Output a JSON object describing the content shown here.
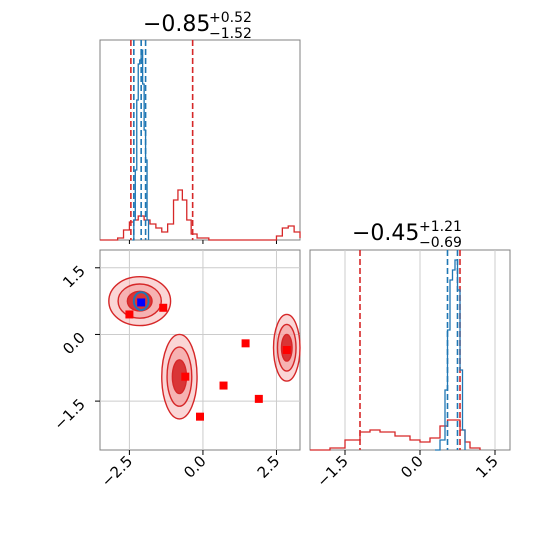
{
  "colors": {
    "red": "#d62728",
    "blue": "#1f77b4",
    "red_fill": "#f3a3a3",
    "marker_blue": "#0000ff",
    "marker_red": "#ff0000"
  },
  "titles": {
    "param1": {
      "median": "−0.85",
      "upper": "+0.52",
      "lower": "−1.52"
    },
    "param2": {
      "median": "−0.45",
      "upper": "+1.21",
      "lower": "−0.69"
    }
  },
  "chart_data": [
    {
      "type": "histogram",
      "panel": "top-left",
      "xlim": [
        -3.5,
        3.3
      ],
      "ylim": [
        0,
        1
      ],
      "series": [
        {
          "color": "#1f77b4",
          "vlines": [
            -2.35,
            -2.1,
            -1.95
          ],
          "points": [
            [
              -2.4,
              0
            ],
            [
              -2.35,
              0.1
            ],
            [
              -2.3,
              0.35
            ],
            [
              -2.25,
              0.7
            ],
            [
              -2.2,
              0.88
            ],
            [
              -2.15,
              0.9
            ],
            [
              -2.1,
              0.95
            ],
            [
              -2.05,
              0.78
            ],
            [
              -2.0,
              0.55
            ],
            [
              -1.95,
              0.4
            ],
            [
              -1.9,
              0.1
            ],
            [
              -1.85,
              0
            ]
          ]
        },
        {
          "color": "#d62728",
          "vlines": [
            -2.45,
            -0.35
          ],
          "points": [
            [
              -3.5,
              0
            ],
            [
              -2.9,
              0.01
            ],
            [
              -2.7,
              0.05
            ],
            [
              -2.5,
              0.09
            ],
            [
              -2.35,
              0.1
            ],
            [
              -2.2,
              0.12
            ],
            [
              -2.0,
              0.1
            ],
            [
              -1.8,
              0.08
            ],
            [
              -1.6,
              0.06
            ],
            [
              -1.4,
              0.04
            ],
            [
              -1.2,
              0.08
            ],
            [
              -1.0,
              0.2
            ],
            [
              -0.85,
              0.25
            ],
            [
              -0.7,
              0.2
            ],
            [
              -0.55,
              0.1
            ],
            [
              -0.4,
              0.03
            ],
            [
              -0.2,
              0.01
            ],
            [
              0.2,
              0
            ],
            [
              1.6,
              0
            ],
            [
              2.5,
              0.02
            ],
            [
              2.7,
              0.06
            ],
            [
              2.9,
              0.07
            ],
            [
              3.1,
              0.04
            ],
            [
              3.3,
              0.01
            ]
          ]
        }
      ],
      "ticks": []
    },
    {
      "type": "scatter",
      "panel": "bottom-left",
      "xlim": [
        -3.5,
        3.3
      ],
      "ylim": [
        -2.6,
        1.9
      ],
      "xticks": [
        -2.5,
        0.0,
        2.5
      ],
      "xticklabels": [
        "−2.5",
        "0.0",
        "2.5"
      ],
      "yticks": [
        1.5,
        0.0,
        -1.5
      ],
      "yticklabels": [
        "1.5",
        "0.0",
        "−1.5"
      ],
      "contours_red": [
        {
          "cx": -2.15,
          "cy": 0.75,
          "rx": 1.05,
          "ry": 0.55
        },
        {
          "cx": -0.8,
          "cy": -0.95,
          "rx": 0.6,
          "ry": 0.95
        },
        {
          "cx": 2.85,
          "cy": -0.3,
          "rx": 0.45,
          "ry": 0.75
        }
      ],
      "contour_blue": {
        "cx": -2.1,
        "cy": 0.75,
        "rx": 0.25,
        "ry": 0.2
      },
      "markers_red": [
        [
          -2.5,
          0.45
        ],
        [
          -1.35,
          0.6
        ],
        [
          -0.6,
          -0.95
        ],
        [
          -0.1,
          -1.85
        ],
        [
          0.7,
          -1.15
        ],
        [
          1.45,
          -0.2
        ],
        [
          1.9,
          -1.45
        ],
        [
          2.85,
          -0.35
        ]
      ],
      "markers_blue": [
        [
          -2.1,
          0.72
        ]
      ]
    },
    {
      "type": "histogram",
      "panel": "bottom-right",
      "xlim": [
        -2.2,
        1.8
      ],
      "ylim": [
        0,
        1
      ],
      "xticks": [
        -1.5,
        0.0,
        1.5
      ],
      "xticklabels": [
        "−1.5",
        "0.0",
        "1.5"
      ],
      "series": [
        {
          "color": "#1f77b4",
          "vlines": [
            0.55,
            0.75
          ],
          "points": [
            [
              0.3,
              0
            ],
            [
              0.4,
              0.05
            ],
            [
              0.5,
              0.3
            ],
            [
              0.55,
              0.6
            ],
            [
              0.6,
              0.85
            ],
            [
              0.65,
              0.9
            ],
            [
              0.7,
              0.95
            ],
            [
              0.75,
              0.8
            ],
            [
              0.8,
              0.4
            ],
            [
              0.85,
              0.1
            ],
            [
              0.9,
              0
            ]
          ]
        },
        {
          "color": "#d62728",
          "vlines": [
            -1.2,
            0.8
          ],
          "points": [
            [
              -2.2,
              0
            ],
            [
              -1.8,
              0.01
            ],
            [
              -1.5,
              0.05
            ],
            [
              -1.2,
              0.09
            ],
            [
              -1.0,
              0.1
            ],
            [
              -0.8,
              0.09
            ],
            [
              -0.5,
              0.07
            ],
            [
              -0.2,
              0.05
            ],
            [
              0.0,
              0.04
            ],
            [
              0.2,
              0.06
            ],
            [
              0.4,
              0.12
            ],
            [
              0.55,
              0.15
            ],
            [
              0.7,
              0.15
            ],
            [
              0.8,
              0.1
            ],
            [
              0.9,
              0.04
            ],
            [
              1.0,
              0.01
            ],
            [
              1.2,
              0
            ]
          ]
        }
      ]
    }
  ]
}
